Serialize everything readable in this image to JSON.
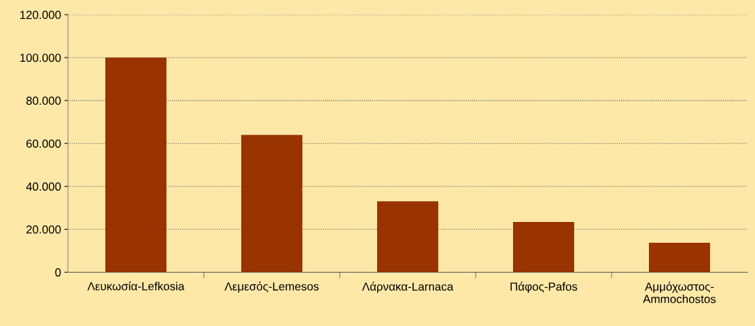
{
  "chart_data": {
    "type": "bar",
    "categories": [
      "Λευκωσία-Lefkosia",
      "Λεμεσός-Lemesos",
      "Λάρνακα-Larnaca",
      "Πάφος-Pafos",
      "Αμμόχωστος-\nAmmochostos"
    ],
    "values": [
      100000,
      64000,
      33000,
      23400,
      13700
    ],
    "color": "#993300",
    "ylim": [
      0,
      120000
    ],
    "yticks": [
      0,
      {
        "value": 20000,
        "label": "20.000"
      },
      {
        "value": 40000,
        "label": "40.000"
      },
      {
        "value": 60000,
        "label": "60.000"
      },
      {
        "value": 80000,
        "label": "80.000"
      },
      {
        "value": 100000,
        "label": "100.000"
      },
      {
        "value": 120000,
        "label": "120.000"
      }
    ],
    "grid": "y"
  }
}
